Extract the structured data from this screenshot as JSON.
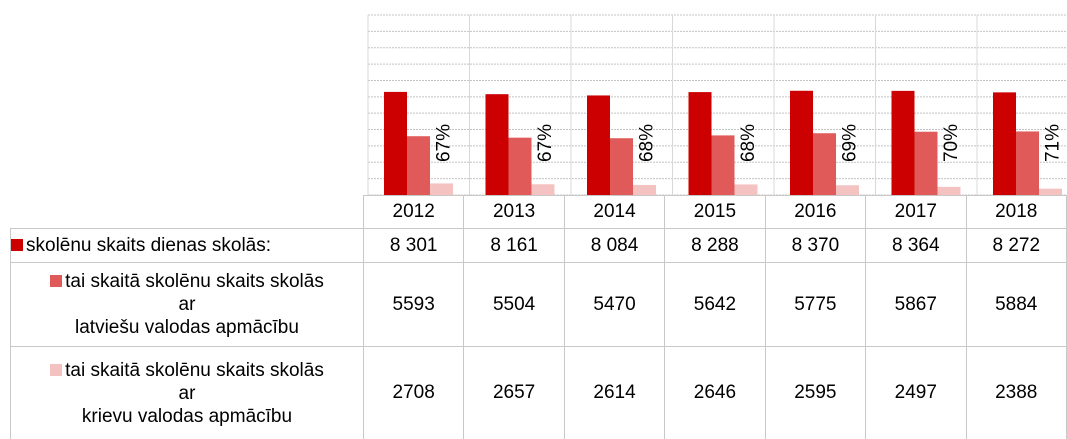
{
  "chart_data": {
    "type": "bar",
    "categories": [
      "2012",
      "2013",
      "2014",
      "2015",
      "2016",
      "2017",
      "2018"
    ],
    "series": [
      {
        "name": "skolēnu skaits dienas skolās:",
        "color": "#cc0000",
        "values": [
          8301,
          8161,
          8084,
          8288,
          8370,
          8364,
          8272
        ],
        "value_labels": [
          "8 301",
          "8 161",
          "8 084",
          "8 288",
          "8 370",
          "8 364",
          "8 272"
        ]
      },
      {
        "name": "tai skaitā skolēnu skaits skolās\nar\nlatviešu valodas apmācību",
        "color": "#e05a5a",
        "values": [
          5593,
          5504,
          5470,
          5642,
          5775,
          5867,
          5884
        ]
      },
      {
        "name": "tai skaitā skolēnu skaits skolās\nar\nkrievu valodas apmācību",
        "color": "#f5c2c2",
        "values": [
          2708,
          2657,
          2614,
          2646,
          2595,
          2497,
          2388
        ]
      }
    ],
    "share_labels": [
      "67%",
      "67%",
      "68%",
      "68%",
      "69%",
      "70%",
      "71%"
    ],
    "ylim": [
      2000,
      13000
    ],
    "yticks": [
      2000,
      3000,
      4000,
      5000,
      6000,
      7000,
      8000,
      9000,
      10000,
      11000,
      12000,
      13000
    ],
    "grid": true
  }
}
